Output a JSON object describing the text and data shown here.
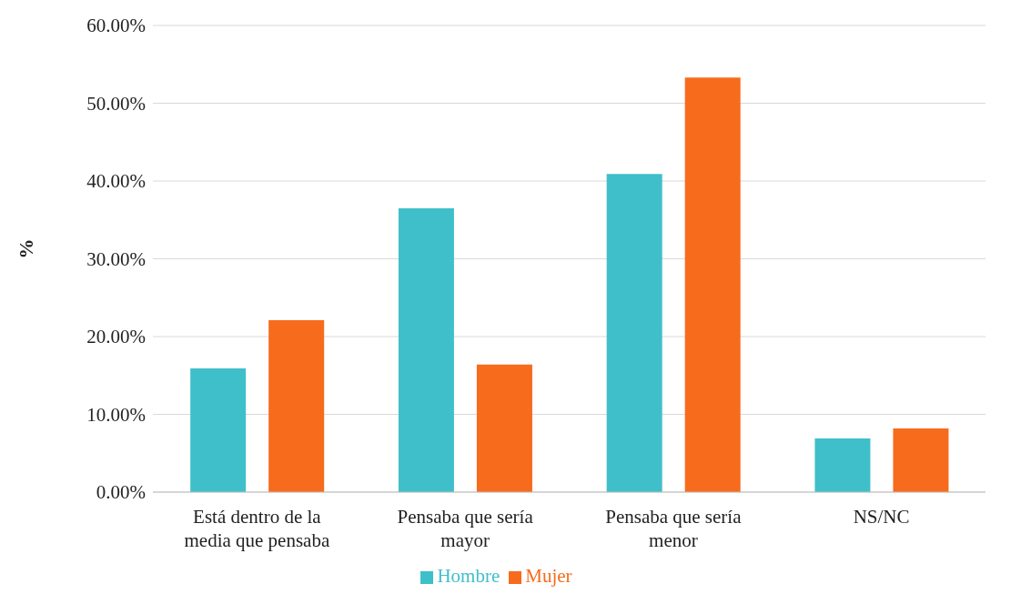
{
  "chart_data": {
    "type": "bar",
    "ylabel": "%",
    "categories": [
      "Está dentro de la media que pensaba",
      "Pensaba que sería mayor",
      "Pensaba que sería menor",
      "NS/NC"
    ],
    "series": [
      {
        "name": "Hombre",
        "color": "#3fbfc9",
        "values": [
          15.9,
          36.5,
          40.9,
          6.9
        ]
      },
      {
        "name": "Mujer",
        "color": "#f76b1c",
        "values": [
          22.1,
          16.4,
          53.3,
          8.2
        ]
      }
    ],
    "ylim": [
      0,
      60
    ],
    "yticks": [
      {
        "value": 0,
        "label": "0.00%"
      },
      {
        "value": 10,
        "label": "10.00%"
      },
      {
        "value": 20,
        "label": "20.00%"
      },
      {
        "value": 30,
        "label": "30.00%"
      },
      {
        "value": 40,
        "label": "40.00%"
      },
      {
        "value": 50,
        "label": "50.00%"
      },
      {
        "value": 60,
        "label": "60.00%"
      }
    ],
    "grid": "y",
    "legend": "bottom"
  }
}
